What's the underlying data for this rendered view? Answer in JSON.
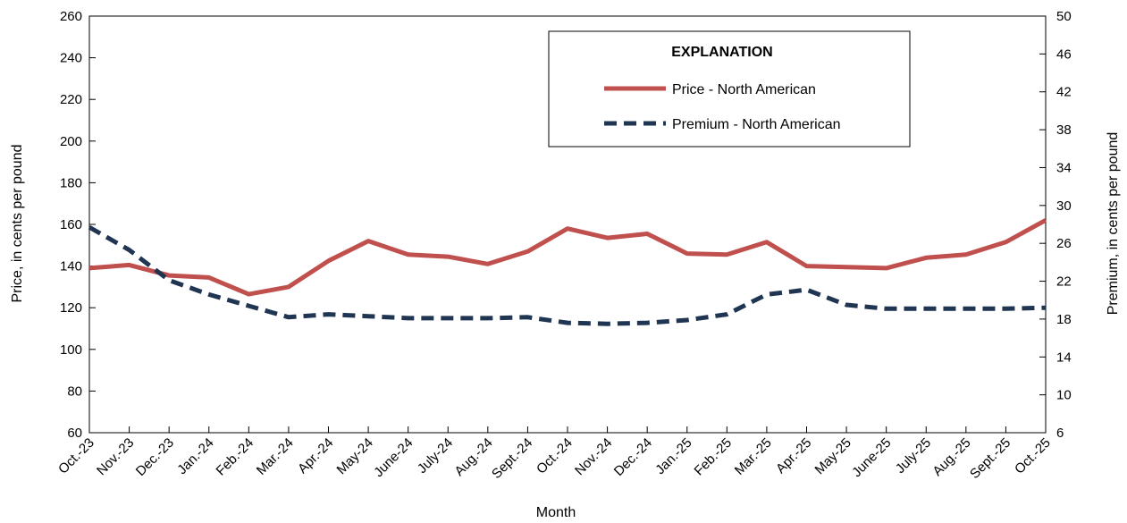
{
  "chart_data": {
    "type": "line",
    "title": "",
    "xlabel": "Month",
    "ylabel": "Price, in cents per pound",
    "y2label": "Premium, in cents per pound",
    "ylim": [
      60,
      260
    ],
    "yticks": [
      "60",
      "80",
      "100",
      "120",
      "140",
      "160",
      "180",
      "200",
      "220",
      "240",
      "260"
    ],
    "y2lim": [
      6,
      50
    ],
    "y2ticks": [
      "6",
      "10",
      "14",
      "18",
      "22",
      "26",
      "30",
      "34",
      "38",
      "42",
      "46",
      "50"
    ],
    "categories": [
      "Oct.-23",
      "Nov.-23",
      "Dec.-23",
      "Jan.-24",
      "Feb.-24",
      "Mar.-24",
      "Apr.-24",
      "May-24",
      "June-24",
      "July-24",
      "Aug.-24",
      "Sept.-24",
      "Oct.-24",
      "Nov.-24",
      "Dec.-24",
      "Jan.-25",
      "Feb.-25",
      "Mar.-25",
      "Apr.-25",
      "May-25",
      "June-25",
      "July-25",
      "Aug.-25",
      "Sept.-25",
      "Oct.-25"
    ],
    "legend": {
      "title": "EXPLANATION",
      "placement": "top-right"
    },
    "grid": false,
    "series": [
      {
        "name": "Price - North American",
        "axis": "left",
        "style": "solid",
        "color": "#C0504D",
        "values": [
          139,
          140.5,
          135.5,
          134.5,
          126.5,
          130,
          142.5,
          152,
          145.5,
          144.5,
          141,
          147,
          158,
          153.5,
          155.5,
          146,
          145.5,
          151.5,
          140,
          139.5,
          139,
          144,
          145.5,
          151.5,
          162
        ]
      },
      {
        "name": "Premium - North American",
        "axis": "right",
        "style": "dashed",
        "color": "#1F3552",
        "values": [
          27.7,
          25.3,
          22.1,
          20.6,
          19.4,
          18.2,
          18.5,
          18.3,
          18.1,
          18.1,
          18.1,
          18.2,
          17.6,
          17.5,
          17.6,
          17.9,
          18.5,
          20.6,
          21.1,
          19.5,
          19.1,
          19.1,
          19.1,
          19.1,
          19.2
        ]
      }
    ]
  }
}
